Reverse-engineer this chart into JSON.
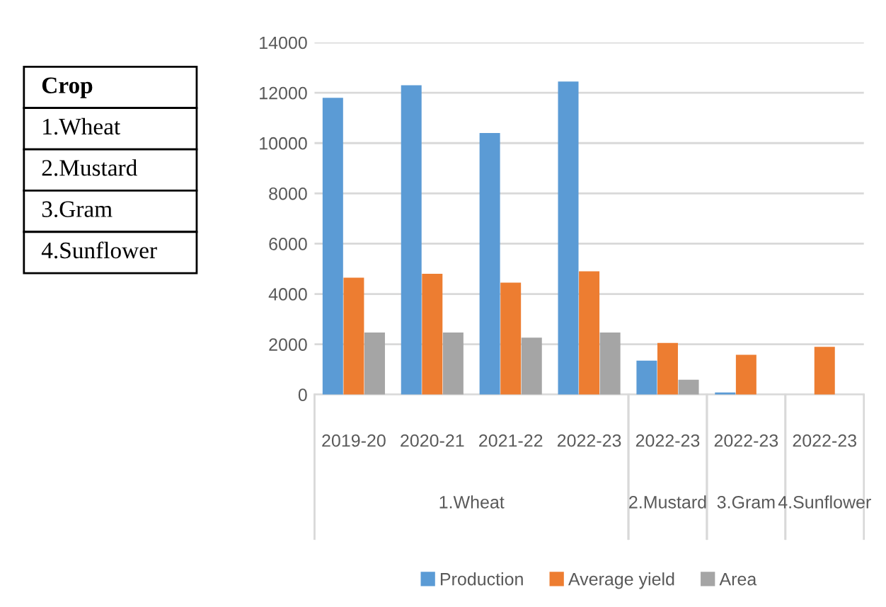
{
  "chart_data": [
    {
      "type": "other",
      "title": "Crop",
      "annotations": [
        "1.Wheat",
        "2.Mustard",
        "3.Gram",
        "4.Sunflower"
      ]
    },
    {
      "type": "bar",
      "categories": [
        "2019-20",
        "2020-21",
        "2021-22",
        "2022-23",
        "2022-23",
        "2022-23",
        "2022-23"
      ],
      "series": [
        {
          "name": "Production",
          "color": "#5b9bd5",
          "values": [
            11800,
            12300,
            10400,
            12450,
            1350,
            80,
            null
          ]
        },
        {
          "name": "Average yield",
          "color": "#ed7d31",
          "values": [
            4650,
            4800,
            4450,
            4900,
            2050,
            1580,
            1900
          ]
        },
        {
          "name": "Area",
          "color": "#a5a5a5",
          "values": [
            2470,
            2470,
            2260,
            2470,
            590,
            null,
            null
          ]
        }
      ],
      "annotations": [
        "1.Wheat",
        "2.Mustard",
        "3.Gram",
        "4.Sunflower"
      ],
      "ylim": [
        0,
        14000
      ],
      "yticks": [
        0,
        2000,
        4000,
        6000,
        8000,
        10000,
        12000,
        14000
      ],
      "grid": "y",
      "legend": "bottom"
    }
  ]
}
